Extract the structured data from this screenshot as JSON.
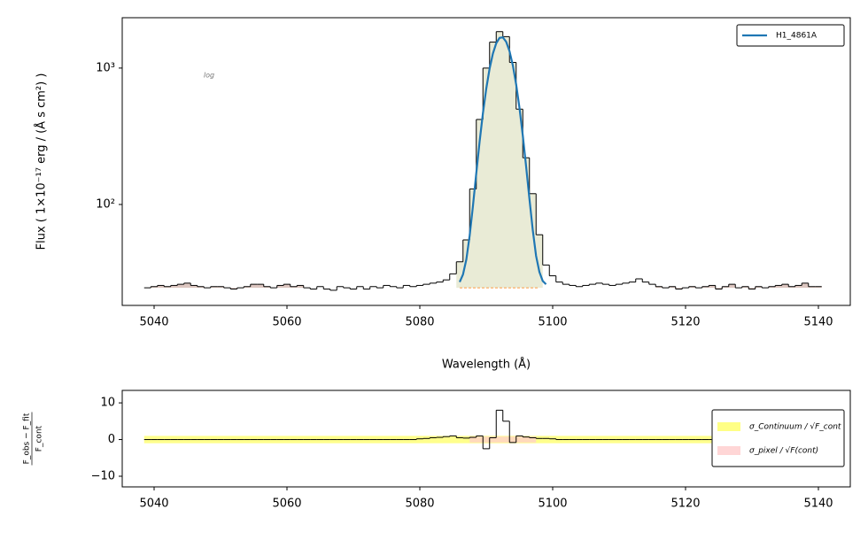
{
  "chart_data": [
    {
      "type": "step",
      "yscale": "log",
      "xlabel": "Wavelength (Å)",
      "ylabel": "Flux ( 1×10⁻¹⁷ erg / (Å s cm²) )",
      "annotation": "log",
      "xlim": [
        5035.2,
        5144.8
      ],
      "ylim": [
        18.2,
        2340
      ],
      "xticks": [
        5040,
        5060,
        5080,
        5100,
        5120,
        5140
      ],
      "yticks": [
        {
          "value": 100,
          "label": "10²"
        },
        {
          "value": 1000,
          "label": "10³"
        }
      ],
      "color": "#000000",
      "x": [
        5039,
        5040,
        5041,
        5042,
        5043,
        5044,
        5045,
        5046,
        5047,
        5048,
        5049,
        5050,
        5051,
        5052,
        5053,
        5054,
        5055,
        5056,
        5057,
        5058,
        5059,
        5060,
        5061,
        5062,
        5063,
        5064,
        5065,
        5066,
        5067,
        5068,
        5069,
        5070,
        5071,
        5072,
        5073,
        5074,
        5075,
        5076,
        5077,
        5078,
        5079,
        5080,
        5081,
        5082,
        5083,
        5084,
        5085,
        5086,
        5087,
        5088,
        5089,
        5090,
        5091,
        5092,
        5093,
        5094,
        5095,
        5096,
        5097,
        5098,
        5099,
        5100,
        5101,
        5102,
        5103,
        5104,
        5105,
        5106,
        5107,
        5108,
        5109,
        5110,
        5111,
        5112,
        5113,
        5114,
        5115,
        5116,
        5117,
        5118,
        5119,
        5120,
        5121,
        5122,
        5123,
        5124,
        5125,
        5126,
        5127,
        5128,
        5129,
        5130,
        5131,
        5132,
        5133,
        5134,
        5135,
        5136,
        5137,
        5138,
        5139,
        5140
      ],
      "values": [
        24.5,
        25,
        25.5,
        25,
        25.5,
        26,
        26.5,
        25.5,
        25,
        24.5,
        25,
        25,
        24.5,
        24,
        24.5,
        25,
        26,
        26,
        25,
        24.5,
        25.5,
        26,
        25,
        25.5,
        24.5,
        24,
        25,
        24,
        23.5,
        25,
        24.5,
        24,
        25,
        24,
        25,
        24.5,
        25.5,
        25,
        24.5,
        25.5,
        25,
        25.5,
        26,
        26.5,
        27,
        28,
        31,
        38,
        55,
        130,
        420,
        1000,
        1550,
        1850,
        1700,
        1100,
        500,
        220,
        120,
        60,
        36,
        30,
        27,
        26,
        25.5,
        25,
        25.5,
        26,
        26.5,
        26,
        25.5,
        26,
        26.5,
        27,
        28.5,
        27,
        26,
        25,
        24.5,
        25,
        24,
        24.5,
        25,
        24.5,
        25,
        25.5,
        24,
        25,
        26,
        24.5,
        25,
        24,
        25,
        24.5,
        25,
        25.5,
        26,
        25,
        25.5,
        26.5,
        25,
        25
      ],
      "line_region": [
        5085.5,
        5098.5
      ],
      "line_fill": "#e9ebd6",
      "continuum_bands": [
        [
          5038.5,
          5062.5
        ],
        [
          5115.5,
          5140.5
        ]
      ],
      "band_fill": "#dcc6c0",
      "continuum": {
        "color": "#ff7f0e",
        "x": [
          5086,
          5098
        ],
        "values": [
          24.5,
          24.5
        ]
      },
      "legend": "upper right",
      "series": [
        {
          "name": "H1_4861A",
          "color": "#1f77b4",
          "x": [
            5086,
            5086.5,
            5087,
            5087.5,
            5088,
            5088.5,
            5089,
            5089.5,
            5090,
            5090.5,
            5091,
            5091.5,
            5092,
            5092.5,
            5093,
            5093.5,
            5094,
            5094.5,
            5095,
            5095.5,
            5096,
            5096.5,
            5097,
            5097.5,
            5098,
            5098.5,
            5099
          ],
          "values": [
            27,
            30.7,
            39.5,
            59,
            98,
            170,
            289,
            468,
            706,
            989,
            1277,
            1520,
            1665,
            1679,
            1558,
            1331,
            1047,
            760,
            511,
            320,
            190,
            110,
            65,
            42,
            32,
            27.5,
            26
          ]
        }
      ]
    },
    {
      "type": "step",
      "ylabel": {
        "numerator": "F_obs − F_fit",
        "denominator": "F_cont"
      },
      "xlim": [
        5035.2,
        5144.8
      ],
      "ylim": [
        -12.9,
        13.4
      ],
      "xticks": [
        5040,
        5060,
        5080,
        5100,
        5120,
        5140
      ],
      "yticks": [
        {
          "value": -10,
          "label": "−10"
        },
        0,
        10
      ],
      "color": "#000000",
      "x": [
        5039,
        5040,
        5041,
        5042,
        5043,
        5044,
        5045,
        5046,
        5047,
        5048,
        5049,
        5050,
        5051,
        5052,
        5053,
        5054,
        5055,
        5056,
        5057,
        5058,
        5059,
        5060,
        5061,
        5062,
        5063,
        5064,
        5065,
        5066,
        5067,
        5068,
        5069,
        5070,
        5071,
        5072,
        5073,
        5074,
        5075,
        5076,
        5077,
        5078,
        5079,
        5080,
        5081,
        5082,
        5083,
        5084,
        5085,
        5086,
        5087,
        5088,
        5089,
        5090,
        5091,
        5092,
        5093,
        5094,
        5095,
        5096,
        5097,
        5098,
        5099,
        5100,
        5101,
        5102,
        5103,
        5104,
        5105,
        5106,
        5107,
        5108,
        5109,
        5110,
        5111,
        5112,
        5113,
        5114,
        5115,
        5116,
        5117,
        5118,
        5119,
        5120,
        5121,
        5122,
        5123,
        5124,
        5125,
        5126,
        5127,
        5128,
        5129,
        5130,
        5131,
        5132,
        5133,
        5134,
        5135,
        5136,
        5137,
        5138,
        5139,
        5140
      ],
      "values": [
        0,
        0,
        0,
        0,
        0,
        0,
        0,
        0,
        0,
        0,
        0,
        0,
        0,
        0,
        0,
        0,
        0,
        0,
        0,
        0,
        0,
        0,
        0,
        0,
        0,
        0,
        0,
        0,
        0,
        0,
        0,
        0,
        0,
        0,
        0,
        0,
        0,
        0,
        0,
        0,
        0,
        0.2,
        0.3,
        0.5,
        0.6,
        0.8,
        1.0,
        0.5,
        0.4,
        0.6,
        1.0,
        -2.5,
        0.5,
        8,
        5,
        -0.8,
        1.0,
        0.7,
        0.5,
        0.3,
        0.3,
        0.2,
        0,
        0,
        0,
        0,
        0,
        0,
        0,
        0,
        0,
        0,
        0,
        0,
        0,
        0,
        0,
        0,
        0,
        0,
        0,
        0,
        0,
        0,
        0,
        0,
        0,
        0,
        0,
        0,
        0,
        0,
        0,
        0,
        0,
        0,
        0,
        0,
        0,
        0,
        0,
        0
      ],
      "legend": "center right",
      "series": [
        {
          "name": "σ_Continuum / √F_cont",
          "color": "#ffff66",
          "x": [
            5038.5,
            5140.5
          ],
          "values": [
            1.0,
            1.0
          ]
        },
        {
          "name": "σ_pixel / √F(cont)",
          "color": "#ffcccc",
          "x": [
            5087.5,
            5097.5
          ],
          "values": [
            0.8,
            0.8
          ]
        }
      ]
    }
  ]
}
